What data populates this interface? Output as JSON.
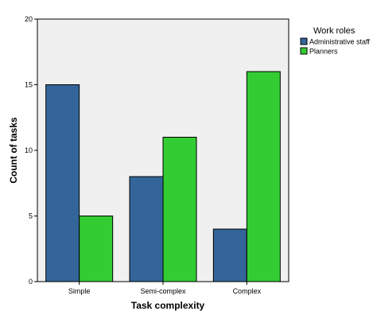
{
  "chart_data": {
    "type": "bar",
    "title": "",
    "xlabel": "Task complexity",
    "ylabel": "Count of tasks",
    "categories": [
      "Simple",
      "Semi-complex",
      "Complex"
    ],
    "series": [
      {
        "name": "Administrative staff",
        "values": [
          15,
          8,
          4
        ],
        "color": "#34659a"
      },
      {
        "name": "Planners",
        "values": [
          5,
          11,
          16
        ],
        "color": "#33cc33"
      }
    ],
    "ylim": [
      0,
      20
    ],
    "yticks": [
      0,
      5,
      10,
      15,
      20
    ],
    "grid": false,
    "legend": {
      "title": "Work roles",
      "position": "right"
    },
    "plot_background": "#f0f0f0"
  }
}
